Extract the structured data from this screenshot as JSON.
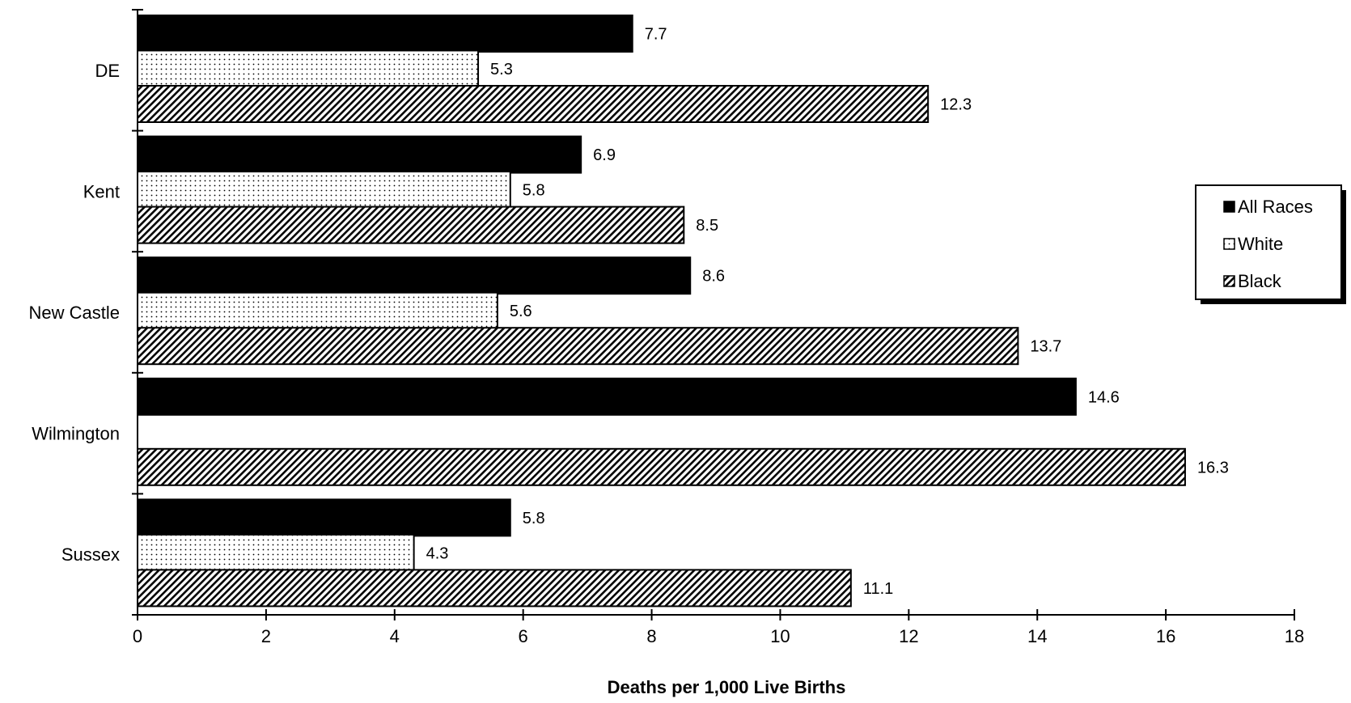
{
  "chart_data": {
    "type": "bar",
    "orientation": "horizontal",
    "categories": [
      "DE",
      "Kent",
      "New Castle",
      "Wilmington",
      "Sussex"
    ],
    "series": [
      {
        "name": "All Races",
        "pattern": "solid",
        "color": "#000000",
        "values": [
          7.7,
          6.9,
          8.6,
          14.6,
          5.8
        ]
      },
      {
        "name": "White",
        "pattern": "dots",
        "color": "#ffffff",
        "values": [
          5.3,
          5.8,
          5.6,
          null,
          4.3
        ]
      },
      {
        "name": "Black",
        "pattern": "diagonal-hatch",
        "color": "#000000",
        "values": [
          12.3,
          8.5,
          13.7,
          16.3,
          11.1
        ]
      }
    ],
    "xlabel": "Deaths per 1,000 Live Births",
    "ylabel": "",
    "title": "",
    "xlim": [
      0,
      18
    ],
    "xticks": [
      0,
      2,
      4,
      6,
      8,
      10,
      12,
      14,
      16,
      18
    ],
    "grid": false,
    "legend_position": "right"
  }
}
